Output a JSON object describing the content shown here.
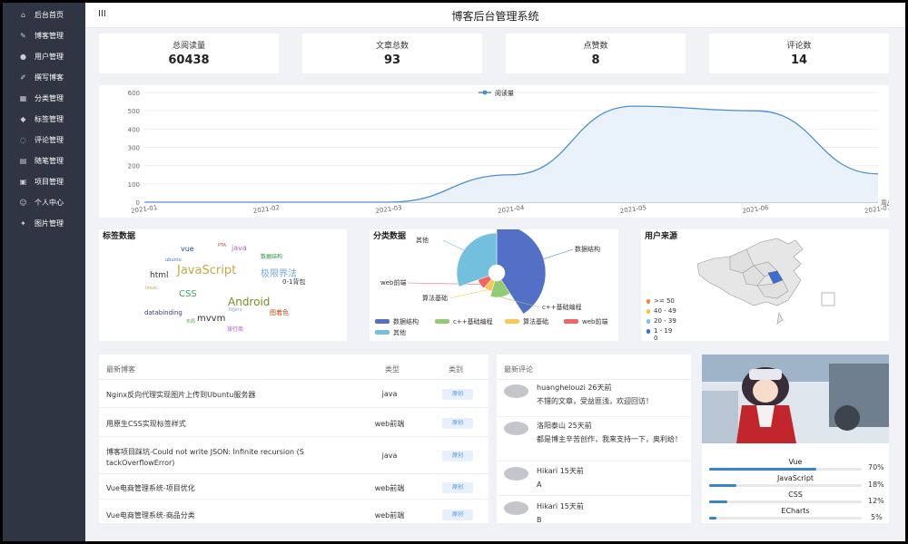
{
  "sidebar": {
    "items": [
      {
        "label": "后台首页",
        "icon": "home-icon"
      },
      {
        "label": "博客管理",
        "icon": "blog-icon"
      },
      {
        "label": "用户管理",
        "icon": "user-icon"
      },
      {
        "label": "撰写博客",
        "icon": "pen-icon"
      },
      {
        "label": "分类管理",
        "icon": "grid-icon"
      },
      {
        "label": "标签管理",
        "icon": "tag-icon"
      },
      {
        "label": "评论管理",
        "icon": "comment-icon"
      },
      {
        "label": "随笔管理",
        "icon": "note-icon"
      },
      {
        "label": "项目管理",
        "icon": "project-icon"
      },
      {
        "label": "个人中心",
        "icon": "profile-icon"
      },
      {
        "label": "图片管理",
        "icon": "image-icon"
      }
    ]
  },
  "header": {
    "menu_icon": "III",
    "title": "博客后台管理系统"
  },
  "stats": [
    {
      "label": "总阅读量",
      "value": "60438"
    },
    {
      "label": "文章总数",
      "value": "93"
    },
    {
      "label": "点赞数",
      "value": "8"
    },
    {
      "label": "评论数",
      "value": "14"
    }
  ],
  "chart_data": [
    {
      "type": "area",
      "legend": [
        "阅读量"
      ],
      "legend_position": "top-center",
      "x": [
        "2021-01",
        "2021-02",
        "2021-03",
        "2021-04",
        "2021-05",
        "2021-06",
        "2021-07"
      ],
      "x_unit": "周/月",
      "series": [
        {
          "name": "阅读量",
          "values": [
            0,
            0,
            0,
            150,
            525,
            500,
            155
          ]
        }
      ],
      "ylim": [
        0,
        600
      ],
      "yticks": [
        0,
        100,
        200,
        300,
        400,
        500,
        600
      ],
      "color": "#4f8fd0",
      "grid": true
    },
    {
      "type": "pie",
      "title": "分类数据",
      "slices": [
        {
          "name": "数据结构",
          "value": 40,
          "color": "#5470c6"
        },
        {
          "name": "c++基础编程",
          "value": 13,
          "color": "#91cc75"
        },
        {
          "name": "算法基础",
          "value": 7,
          "color": "#fac858"
        },
        {
          "name": "web前端",
          "value": 8,
          "color": "#ee6666"
        },
        {
          "name": "其他",
          "value": 30,
          "color": "#73c0de"
        }
      ]
    }
  ],
  "tags_panel": {
    "title": "标签数据",
    "words": [
      {
        "text": "vue",
        "color": "#2b4d8e"
      },
      {
        "text": "PTA",
        "color": "#c55"
      },
      {
        "text": "java",
        "color": "#b36acb"
      },
      {
        "text": "数据结构",
        "color": "#2d8f3c"
      },
      {
        "text": "ubuntu",
        "color": "#3b73c6"
      },
      {
        "text": "html",
        "color": "#333"
      },
      {
        "text": "JavaScript",
        "color": "#c7a84b"
      },
      {
        "text": "极限界法",
        "color": "#7aa7e0"
      },
      {
        "text": "0-1背包",
        "color": "#333"
      },
      {
        "text": "linux",
        "color": "#d99a3a"
      },
      {
        "text": "CSS",
        "color": "#3aa85a"
      },
      {
        "text": "Android",
        "color": "#7a8f2a"
      },
      {
        "text": "databinding",
        "color": "#3a3a8a"
      },
      {
        "text": "图着色",
        "color": "#c04a1a"
      },
      {
        "text": "Nginx",
        "color": "#8ab"
      },
      {
        "text": "布局",
        "color": "#5a5"
      },
      {
        "text": "mvvm",
        "color": "#333"
      },
      {
        "text": "旅行商",
        "color": "#a35ac0"
      }
    ]
  },
  "category_panel": {
    "title": "分类数据"
  },
  "source_panel": {
    "title": "用户来源",
    "legend": [
      {
        "label": ">= 50",
        "color": "#f08a32"
      },
      {
        "label": "40 - 49",
        "color": "#f5c542"
      },
      {
        "label": "20 - 39",
        "color": "#7ec6e8"
      },
      {
        "label": "1 - 19",
        "color": "#3a6fd1"
      },
      {
        "label": "0",
        "color": "#ffffff"
      }
    ]
  },
  "blog_table": {
    "headers": [
      "最新博客",
      "类型",
      "类别"
    ],
    "rows": [
      {
        "title": "Nginx反向代理实现图片上传到Ubuntu服务器",
        "type": "java",
        "tag": "原创"
      },
      {
        "title": "用原生CSS实现标签样式",
        "type": "web前端",
        "tag": "原创"
      },
      {
        "title": "博客项目踩坑-Could not write JSON: Infinite recursion (S",
        "title2": "tackOverflowError)",
        "type": "java",
        "tag": "原创"
      },
      {
        "title": "Vue电商管理系统-项目优化",
        "type": "web前端",
        "tag": "原创"
      },
      {
        "title": "Vue电商管理系统-商品分类",
        "type": "web前端",
        "tag": "原创"
      }
    ]
  },
  "comments": {
    "title": "最新评论",
    "items": [
      {
        "user": "huanghelouzi 26天前",
        "text": "不错的文章，受益匪浅，欢迎回访！"
      },
      {
        "user": "洛阳泰山 25天前",
        "text": "都是博主辛苦创作，我来支持一下，奥利给！"
      },
      {
        "user": "Hikari 15天前",
        "text": "A"
      },
      {
        "user": "Hikari 15天前",
        "text": "B"
      }
    ]
  },
  "skills": [
    {
      "name": "Vue",
      "percent": 70,
      "label": "70%"
    },
    {
      "name": "JavaScript",
      "percent": 18,
      "label": "18%"
    },
    {
      "name": "CSS",
      "percent": 12,
      "label": "12%"
    },
    {
      "name": "ECharts",
      "percent": 5,
      "label": "5%"
    }
  ]
}
